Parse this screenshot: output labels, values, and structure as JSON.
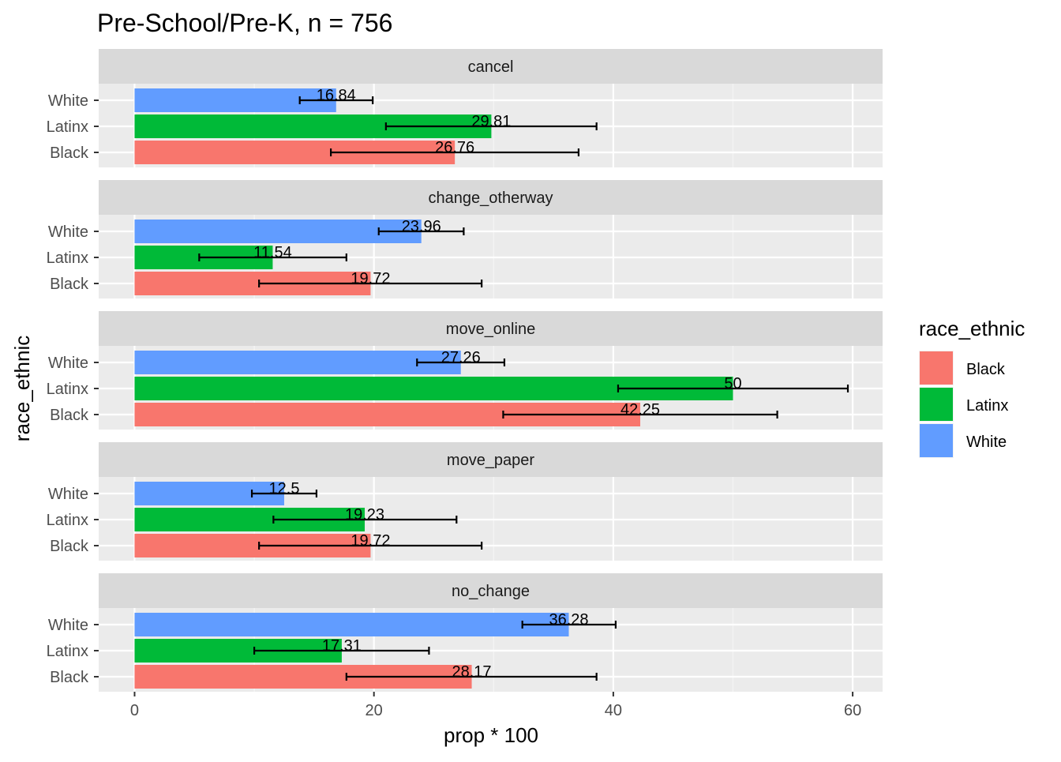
{
  "chart_data": {
    "type": "bar",
    "orientation": "horizontal",
    "title": "Pre-School/Pre-K, n = 756",
    "xlabel": "prop * 100",
    "ylabel": "race_ethnic",
    "xlim": [
      -3,
      62.5
    ],
    "x_ticks": [
      0,
      20,
      40,
      60
    ],
    "x_tick_labels": [
      "0",
      "20",
      "40",
      "60"
    ],
    "grid": true,
    "legend": {
      "title": "race_ethnic",
      "position": "right",
      "items": [
        {
          "label": "Black",
          "color": "#F8766D"
        },
        {
          "label": "Latinx",
          "color": "#00BA38"
        },
        {
          "label": "White",
          "color": "#619CFF"
        }
      ]
    },
    "categories": [
      "White",
      "Latinx",
      "Black"
    ],
    "facets": [
      {
        "name": "cancel",
        "bars": [
          {
            "group": "White",
            "value": 16.84,
            "label": "16.84",
            "err_low": 13.8,
            "err_high": 19.9
          },
          {
            "group": "Latinx",
            "value": 29.81,
            "label": "29.81",
            "err_low": 21.0,
            "err_high": 38.6
          },
          {
            "group": "Black",
            "value": 26.76,
            "label": "26.76",
            "err_low": 16.4,
            "err_high": 37.1
          }
        ]
      },
      {
        "name": "change_otherway",
        "bars": [
          {
            "group": "White",
            "value": 23.96,
            "label": "23.96",
            "err_low": 20.4,
            "err_high": 27.5
          },
          {
            "group": "Latinx",
            "value": 11.54,
            "label": "11.54",
            "err_low": 5.4,
            "err_high": 17.7
          },
          {
            "group": "Black",
            "value": 19.72,
            "label": "19.72",
            "err_low": 10.4,
            "err_high": 29.0
          }
        ]
      },
      {
        "name": "move_online",
        "bars": [
          {
            "group": "White",
            "value": 27.26,
            "label": "27.26",
            "err_low": 23.6,
            "err_high": 30.9
          },
          {
            "group": "Latinx",
            "value": 50,
            "label": "50",
            "err_low": 40.4,
            "err_high": 59.6
          },
          {
            "group": "Black",
            "value": 42.25,
            "label": "42.25",
            "err_low": 30.8,
            "err_high": 53.7
          }
        ]
      },
      {
        "name": "move_paper",
        "bars": [
          {
            "group": "White",
            "value": 12.5,
            "label": "12.5",
            "err_low": 9.8,
            "err_high": 15.2
          },
          {
            "group": "Latinx",
            "value": 19.23,
            "label": "19.23",
            "err_low": 11.6,
            "err_high": 26.9
          },
          {
            "group": "Black",
            "value": 19.72,
            "label": "19.72",
            "err_low": 10.4,
            "err_high": 29.0
          }
        ]
      },
      {
        "name": "no_change",
        "bars": [
          {
            "group": "White",
            "value": 36.28,
            "label": "36.28",
            "err_low": 32.4,
            "err_high": 40.2
          },
          {
            "group": "Latinx",
            "value": 17.31,
            "label": "17.31",
            "err_low": 10.0,
            "err_high": 24.6
          },
          {
            "group": "Black",
            "value": 28.17,
            "label": "28.17",
            "err_low": 17.7,
            "err_high": 38.6
          }
        ]
      }
    ]
  }
}
